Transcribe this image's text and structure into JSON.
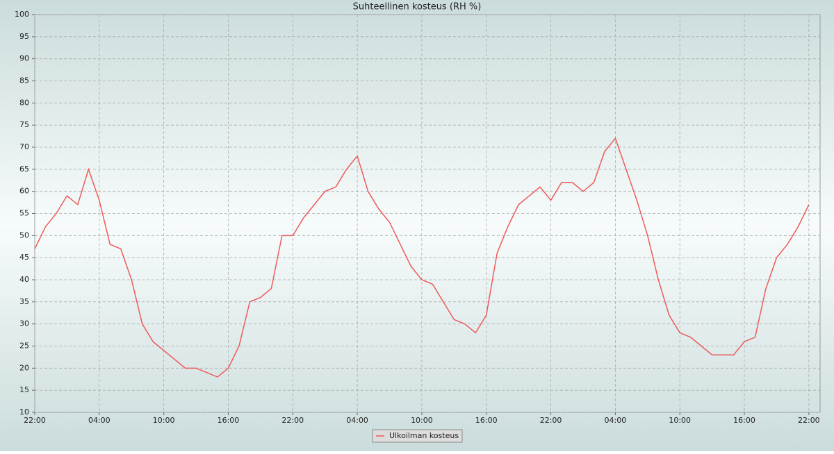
{
  "chart_data": {
    "type": "line",
    "title": "Suhteellinen kosteus (RH %)",
    "categories": [
      "22:00",
      null,
      null,
      null,
      null,
      null,
      "04:00",
      null,
      null,
      null,
      null,
      null,
      "10:00",
      null,
      null,
      null,
      null,
      null,
      "16:00",
      null,
      null,
      null,
      null,
      null,
      "22:00",
      null,
      null,
      null,
      null,
      null,
      "04:00",
      null,
      null,
      null,
      null,
      null,
      "10:00",
      null,
      null,
      null,
      null,
      null,
      "16:00",
      null,
      null,
      null,
      null,
      null,
      "22:00",
      null,
      null,
      null,
      null,
      null,
      "04:00",
      null,
      null,
      null,
      null,
      null,
      "10:00",
      null,
      null,
      null,
      null,
      null,
      "16:00",
      null,
      null,
      null,
      null,
      null,
      "22:00"
    ],
    "series": [
      {
        "name": "Ulkoilman kosteus",
        "color": "#ee5a5a",
        "values": [
          47,
          52,
          55,
          59,
          57,
          65,
          58,
          48,
          47,
          40,
          30,
          26,
          24,
          22,
          20,
          20,
          19,
          18,
          20,
          25,
          35,
          36,
          38,
          50,
          50,
          54,
          57,
          60,
          61,
          65,
          68,
          60,
          56,
          53,
          48,
          43,
          40,
          39,
          35,
          31,
          30,
          28,
          32,
          46,
          52,
          57,
          59,
          61,
          58,
          62,
          62,
          60,
          62,
          69,
          72,
          65,
          58,
          50,
          40,
          32,
          28,
          27,
          25,
          23,
          23,
          23,
          26,
          27,
          38,
          45,
          48,
          52,
          57
        ]
      }
    ],
    "ylim": [
      10,
      100
    ],
    "yticks": [
      10,
      15,
      20,
      25,
      30,
      35,
      40,
      45,
      50,
      55,
      60,
      65,
      70,
      75,
      80,
      85,
      90,
      95,
      100
    ],
    "grid": true
  }
}
